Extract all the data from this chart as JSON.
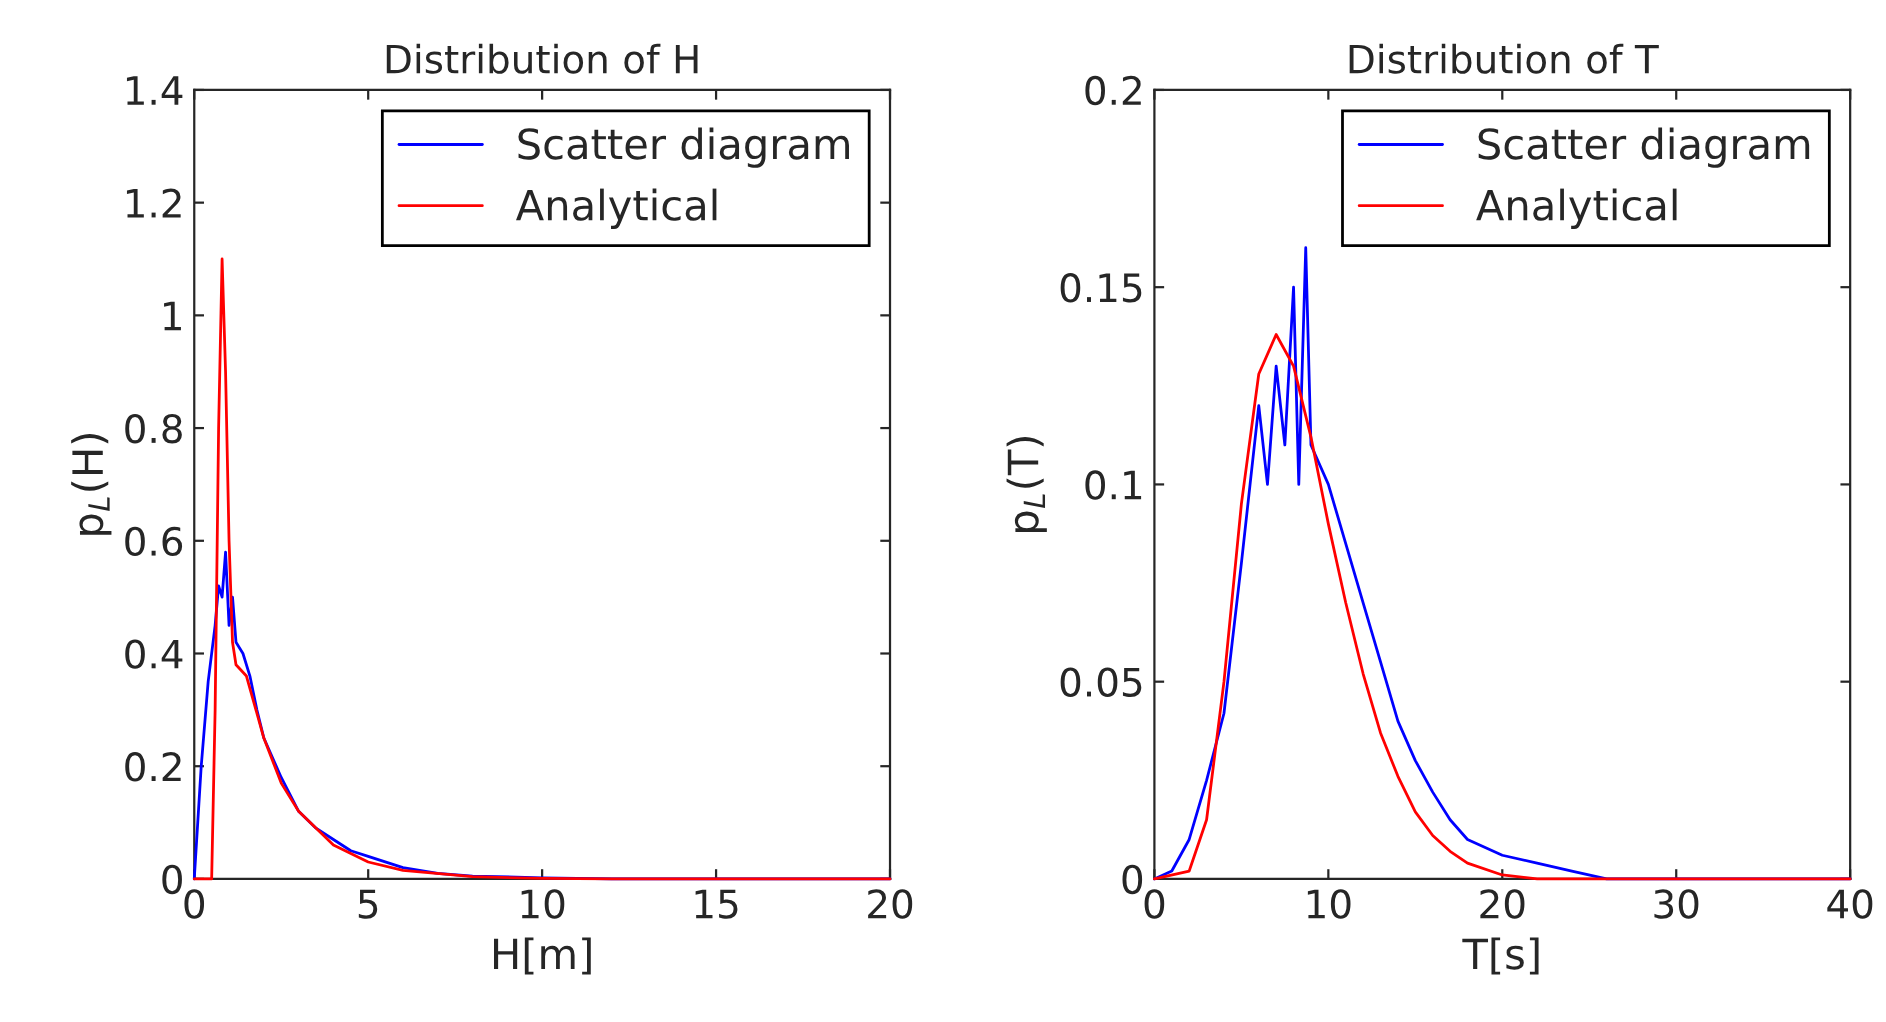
{
  "chart_data": [
    {
      "type": "line",
      "title": "Distribution of H",
      "xlabel": "H[m]",
      "ylabel": "p$_{L}$(H)",
      "xlim": [
        0,
        20
      ],
      "xticks": [
        0,
        5,
        10,
        15,
        20
      ],
      "ylim": [
        0,
        1.4
      ],
      "yticks": [
        0,
        0.2,
        0.4,
        0.6,
        0.8,
        1,
        1.2,
        1.4
      ],
      "grid": false,
      "legend": "top right",
      "series": [
        {
          "name": "Scatter diagram",
          "color": "#0000ff",
          "x": [
            0,
            0.1,
            0.2,
            0.4,
            0.6,
            0.7,
            0.8,
            0.9,
            1.0,
            1.1,
            1.2,
            1.4,
            1.6,
            1.8,
            2.0,
            2.5,
            3,
            3.5,
            4,
            4.5,
            5,
            6,
            7,
            8,
            10,
            12,
            20
          ],
          "values": [
            0,
            0.1,
            0.2,
            0.35,
            0.45,
            0.52,
            0.5,
            0.58,
            0.45,
            0.5,
            0.42,
            0.4,
            0.36,
            0.3,
            0.25,
            0.18,
            0.12,
            0.09,
            0.07,
            0.05,
            0.04,
            0.02,
            0.01,
            0.005,
            0.002,
            0,
            0
          ]
        },
        {
          "name": "Analytical",
          "color": "#ff0000",
          "x": [
            0,
            0.5,
            0.6,
            0.7,
            0.8,
            0.9,
            1.0,
            1.1,
            1.2,
            1.5,
            2,
            2.5,
            3,
            4,
            5,
            6,
            8,
            10,
            12,
            20
          ],
          "values": [
            0,
            0,
            0.3,
            0.8,
            1.1,
            0.9,
            0.6,
            0.42,
            0.38,
            0.36,
            0.25,
            0.17,
            0.12,
            0.06,
            0.03,
            0.015,
            0.004,
            0.001,
            0,
            0
          ]
        }
      ]
    },
    {
      "type": "line",
      "title": "Distribution of T",
      "xlabel": "T[s]",
      "ylabel": "p$_{L}$(T)",
      "xlim": [
        0,
        40
      ],
      "xticks": [
        0,
        10,
        20,
        30,
        40
      ],
      "ylim": [
        0,
        0.2
      ],
      "yticks": [
        0,
        0.05,
        0.1,
        0.15,
        0.2
      ],
      "grid": false,
      "legend": "top right",
      "series": [
        {
          "name": "Scatter diagram",
          "color": "#0000ff",
          "x": [
            0,
            1,
            2,
            3,
            4,
            5,
            5.5,
            6,
            6.5,
            7,
            7.5,
            8,
            8.3,
            8.7,
            9,
            10,
            11,
            12,
            13,
            14,
            15,
            16,
            17,
            18,
            20,
            22,
            24,
            26,
            40
          ],
          "values": [
            0,
            0.002,
            0.01,
            0.025,
            0.042,
            0.08,
            0.1,
            0.12,
            0.1,
            0.13,
            0.11,
            0.15,
            0.1,
            0.16,
            0.11,
            0.1,
            0.085,
            0.07,
            0.055,
            0.04,
            0.03,
            0.022,
            0.015,
            0.01,
            0.006,
            0.004,
            0.002,
            0,
            0
          ]
        },
        {
          "name": "Analytical",
          "color": "#ff0000",
          "x": [
            0,
            2,
            3,
            4,
            5,
            6,
            7,
            8,
            9,
            10,
            11,
            12,
            13,
            14,
            15,
            16,
            17,
            18,
            20,
            22,
            40
          ],
          "values": [
            0,
            0.002,
            0.015,
            0.05,
            0.095,
            0.128,
            0.138,
            0.13,
            0.112,
            0.09,
            0.07,
            0.052,
            0.037,
            0.026,
            0.017,
            0.011,
            0.007,
            0.004,
            0.001,
            0,
            0
          ]
        }
      ]
    }
  ]
}
